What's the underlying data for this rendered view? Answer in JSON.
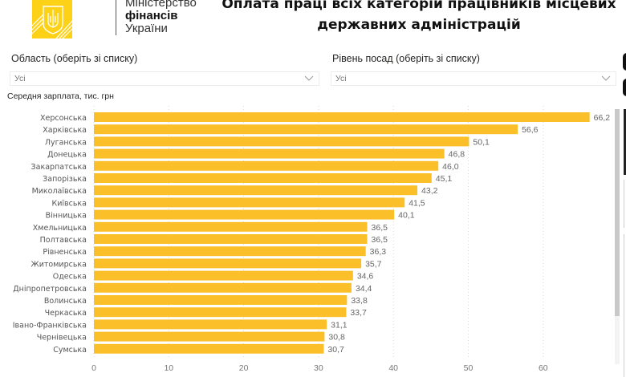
{
  "logo": {
    "line1": "Міністерство",
    "line2": "фінансів",
    "line3": "України",
    "color": "#fcd116"
  },
  "header": {
    "title_line1": "Оплата праці всіх категорій працівників місцевих",
    "title_line2": "державних адміністрацій"
  },
  "filters": {
    "region": {
      "label": "Область (оберіть зі списку)",
      "value": "Усі",
      "icon": "chevron-down-icon"
    },
    "position": {
      "label": "Рівень посад (оберіть зі списку)",
      "value": "Усі",
      "icon": "chevron-down-icon"
    }
  },
  "chart_data": {
    "type": "bar",
    "orientation": "horizontal",
    "title": "Середня зарплата, тис. грн",
    "categories": [
      "Херсонська",
      "Харківська",
      "Луганська",
      "Донецька",
      "Закарпатська",
      "Запорізька",
      "Миколаївська",
      "Київська",
      "Вінницька",
      "Хмельницька",
      "Полтавська",
      "Рівненська",
      "Житомирська",
      "Одеська",
      "Дніпропетровська",
      "Волинська",
      "Черкаська",
      "Івано-Франківська",
      "Чернівецька",
      "Сумська"
    ],
    "values": [
      66.2,
      56.6,
      50.1,
      46.8,
      46.0,
      45.1,
      43.2,
      41.5,
      40.1,
      36.5,
      36.5,
      36.3,
      35.7,
      34.6,
      34.4,
      33.8,
      33.7,
      31.1,
      30.8,
      30.7
    ],
    "value_labels": [
      "66,2",
      "56,6",
      "50,1",
      "46,8",
      "46,0",
      "45,1",
      "43,2",
      "41,5",
      "40,1",
      "36,5",
      "36,5",
      "36,3",
      "35,7",
      "34,6",
      "34,4",
      "33,8",
      "33,7",
      "31,1",
      "30,8",
      "30,7"
    ],
    "xlim": [
      0,
      68
    ],
    "xticks": [
      0,
      10,
      20,
      30,
      40,
      50,
      60
    ],
    "xtick_labels": [
      "0",
      "10",
      "20",
      "30",
      "40",
      "50",
      "60"
    ],
    "grid": "vertical dotted",
    "bar_color": "#fbbf2a"
  }
}
